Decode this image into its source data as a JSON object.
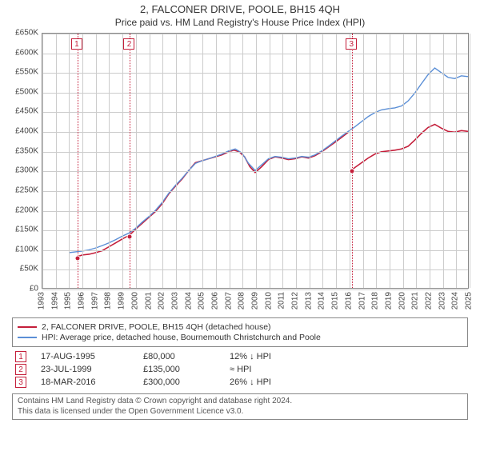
{
  "title": "2, FALCONER DRIVE, POOLE, BH15 4QH",
  "subtitle": "Price paid vs. HM Land Registry's House Price Index (HPI)",
  "chart": {
    "background_color": "#ffffff",
    "grid_color": "#cccccc",
    "border_color": "#888888",
    "y": {
      "min": 0,
      "max": 650000,
      "step": 50000,
      "prefix": "£",
      "suffix": "K",
      "divisor": 1000
    },
    "x": {
      "min": 1993,
      "max": 2025,
      "step": 1
    },
    "series": [
      {
        "name": "2, FALCONER DRIVE, POOLE, BH15 4QH (detached house)",
        "color": "#c41e3a",
        "width": 1.6,
        "points": [
          [
            1995.63,
            80000
          ],
          [
            1996.0,
            84000
          ],
          [
            1996.5,
            86000
          ],
          [
            1997.0,
            90000
          ],
          [
            1997.5,
            95000
          ],
          [
            1998.0,
            105000
          ],
          [
            1998.5,
            115000
          ],
          [
            1999.0,
            125000
          ],
          [
            1999.56,
            135000
          ],
          [
            2000.0,
            150000
          ],
          [
            2000.5,
            165000
          ],
          [
            2001.0,
            180000
          ],
          [
            2001.5,
            195000
          ],
          [
            2002.0,
            215000
          ],
          [
            2002.5,
            240000
          ],
          [
            2003.0,
            260000
          ],
          [
            2003.5,
            278000
          ],
          [
            2004.0,
            300000
          ],
          [
            2004.5,
            320000
          ],
          [
            2005.0,
            325000
          ],
          [
            2005.5,
            330000
          ],
          [
            2006.0,
            335000
          ],
          [
            2006.5,
            340000
          ],
          [
            2007.0,
            348000
          ],
          [
            2007.4,
            352000
          ],
          [
            2007.8,
            348000
          ],
          [
            2008.2,
            335000
          ],
          [
            2008.6,
            310000
          ],
          [
            2009.0,
            295000
          ],
          [
            2009.5,
            310000
          ],
          [
            2010.0,
            328000
          ],
          [
            2010.5,
            335000
          ],
          [
            2011.0,
            332000
          ],
          [
            2011.5,
            328000
          ],
          [
            2012.0,
            330000
          ],
          [
            2012.5,
            335000
          ],
          [
            2013.0,
            332000
          ],
          [
            2013.5,
            338000
          ],
          [
            2014.0,
            348000
          ],
          [
            2014.5,
            360000
          ],
          [
            2015.0,
            372000
          ],
          [
            2015.5,
            385000
          ],
          [
            2016.0,
            398000
          ],
          [
            2016.21,
            300000
          ],
          [
            2016.5,
            308000
          ],
          [
            2017.0,
            320000
          ],
          [
            2017.5,
            332000
          ],
          [
            2018.0,
            342000
          ],
          [
            2018.5,
            348000
          ],
          [
            2019.0,
            350000
          ],
          [
            2019.5,
            352000
          ],
          [
            2020.0,
            355000
          ],
          [
            2020.5,
            362000
          ],
          [
            2021.0,
            378000
          ],
          [
            2021.5,
            395000
          ],
          [
            2022.0,
            410000
          ],
          [
            2022.5,
            418000
          ],
          [
            2023.0,
            408000
          ],
          [
            2023.5,
            400000
          ],
          [
            2024.0,
            398000
          ],
          [
            2024.5,
            402000
          ],
          [
            2025.0,
            400000
          ]
        ],
        "break_before_index": 43
      },
      {
        "name": "HPI: Average price, detached house, Bournemouth Christchurch and Poole",
        "color": "#5b8fd6",
        "width": 1.4,
        "points": [
          [
            1995.0,
            90000
          ],
          [
            1995.5,
            92000
          ],
          [
            1996.0,
            94000
          ],
          [
            1996.5,
            97000
          ],
          [
            1997.0,
            102000
          ],
          [
            1997.5,
            108000
          ],
          [
            1998.0,
            115000
          ],
          [
            1998.5,
            123000
          ],
          [
            1999.0,
            132000
          ],
          [
            1999.5,
            140000
          ],
          [
            2000.0,
            152000
          ],
          [
            2000.5,
            168000
          ],
          [
            2001.0,
            182000
          ],
          [
            2001.5,
            198000
          ],
          [
            2002.0,
            218000
          ],
          [
            2002.5,
            242000
          ],
          [
            2003.0,
            262000
          ],
          [
            2003.5,
            280000
          ],
          [
            2004.0,
            300000
          ],
          [
            2004.5,
            318000
          ],
          [
            2005.0,
            325000
          ],
          [
            2005.5,
            330000
          ],
          [
            2006.0,
            336000
          ],
          [
            2006.5,
            342000
          ],
          [
            2007.0,
            350000
          ],
          [
            2007.5,
            355000
          ],
          [
            2008.0,
            345000
          ],
          [
            2008.5,
            318000
          ],
          [
            2009.0,
            300000
          ],
          [
            2009.5,
            315000
          ],
          [
            2010.0,
            330000
          ],
          [
            2010.5,
            336000
          ],
          [
            2011.0,
            334000
          ],
          [
            2011.5,
            330000
          ],
          [
            2012.0,
            332000
          ],
          [
            2012.5,
            336000
          ],
          [
            2013.0,
            334000
          ],
          [
            2013.5,
            340000
          ],
          [
            2014.0,
            350000
          ],
          [
            2014.5,
            362000
          ],
          [
            2015.0,
            375000
          ],
          [
            2015.5,
            388000
          ],
          [
            2016.0,
            400000
          ],
          [
            2016.5,
            412000
          ],
          [
            2017.0,
            425000
          ],
          [
            2017.5,
            438000
          ],
          [
            2018.0,
            448000
          ],
          [
            2018.5,
            455000
          ],
          [
            2019.0,
            458000
          ],
          [
            2019.5,
            460000
          ],
          [
            2020.0,
            465000
          ],
          [
            2020.5,
            478000
          ],
          [
            2021.0,
            498000
          ],
          [
            2021.5,
            522000
          ],
          [
            2022.0,
            545000
          ],
          [
            2022.5,
            562000
          ],
          [
            2023.0,
            550000
          ],
          [
            2023.5,
            538000
          ],
          [
            2024.0,
            535000
          ],
          [
            2024.5,
            542000
          ],
          [
            2025.0,
            540000
          ]
        ]
      }
    ],
    "markers": [
      {
        "n": 1,
        "x": 1995.63,
        "y": 80000,
        "color": "#c41e3a"
      },
      {
        "n": 2,
        "x": 1999.56,
        "y": 135000,
        "color": "#c41e3a"
      },
      {
        "n": 3,
        "x": 2016.21,
        "y": 300000,
        "color": "#c41e3a"
      }
    ]
  },
  "legend": [
    {
      "label": "2, FALCONER DRIVE, POOLE, BH15 4QH (detached house)",
      "color": "#c41e3a"
    },
    {
      "label": "HPI: Average price, detached house, Bournemouth Christchurch and Poole",
      "color": "#5b8fd6"
    }
  ],
  "events": [
    {
      "n": "1",
      "date": "17-AUG-1995",
      "price": "£80,000",
      "hpi": "12% ↓ HPI",
      "color": "#c41e3a"
    },
    {
      "n": "2",
      "date": "23-JUL-1999",
      "price": "£135,000",
      "hpi": "≈ HPI",
      "color": "#c41e3a"
    },
    {
      "n": "3",
      "date": "18-MAR-2016",
      "price": "£300,000",
      "hpi": "26% ↓ HPI",
      "color": "#c41e3a"
    }
  ],
  "footer": {
    "line1": "Contains HM Land Registry data © Crown copyright and database right 2024.",
    "line2": "This data is licensed under the Open Government Licence v3.0."
  }
}
